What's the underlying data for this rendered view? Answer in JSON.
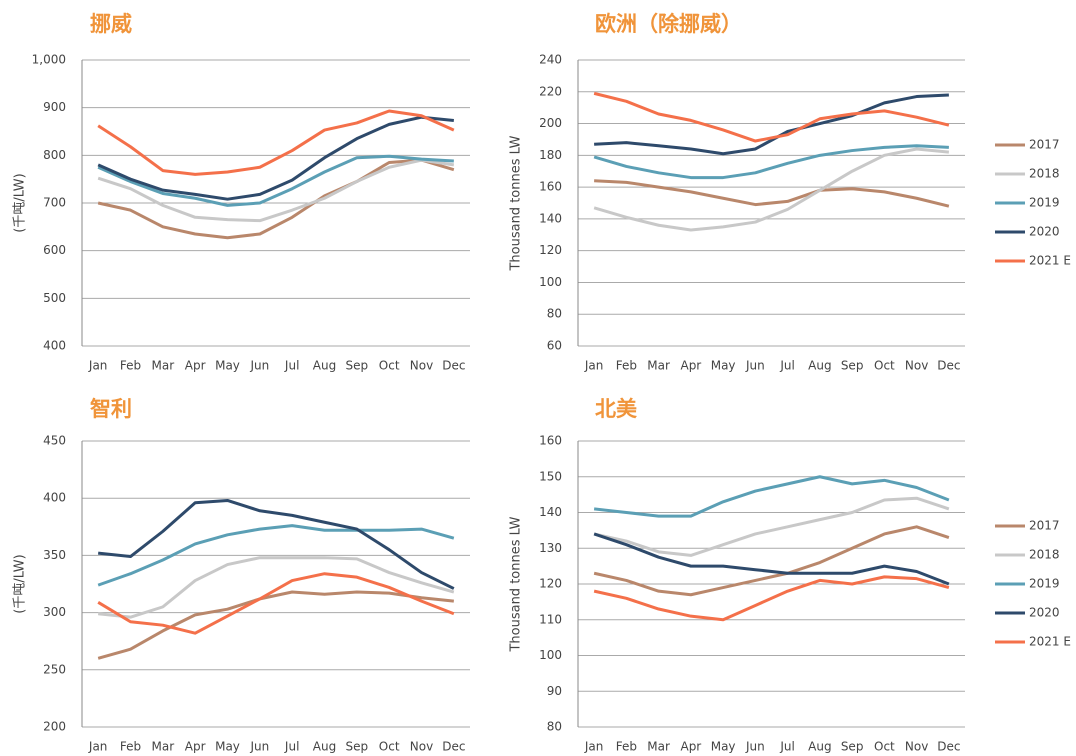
{
  "chart_data": [
    {
      "type": "line",
      "title": "挪威",
      "y_label": "(千吨/LW)",
      "categories": [
        "Jan",
        "Feb",
        "Mar",
        "Apr",
        "May",
        "Jun",
        "Jul",
        "Aug",
        "Sep",
        "Oct",
        "Nov",
        "Dec"
      ],
      "ylim": [
        400,
        1000
      ],
      "yticks": [
        400,
        500,
        600,
        700,
        800,
        900,
        {
          "value": 1000,
          "label": "1,000"
        }
      ],
      "grid": true,
      "series": [
        {
          "name": "2017",
          "color": "#b9876b",
          "values": [
            700,
            685,
            650,
            635,
            627,
            635,
            670,
            715,
            745,
            785,
            790,
            770
          ]
        },
        {
          "name": "2018",
          "color": "#c8c8c8",
          "values": [
            752,
            730,
            695,
            670,
            665,
            663,
            685,
            710,
            745,
            775,
            790,
            780
          ]
        },
        {
          "name": "2019",
          "color": "#5b9fb5",
          "values": [
            775,
            745,
            720,
            710,
            695,
            700,
            730,
            765,
            795,
            798,
            792,
            788
          ]
        },
        {
          "name": "2020",
          "color": "#2e4a6b",
          "values": [
            780,
            750,
            727,
            718,
            708,
            718,
            748,
            795,
            835,
            865,
            880,
            873
          ]
        },
        {
          "name": "2021 E",
          "color": "#f4704a",
          "values": [
            862,
            818,
            768,
            760,
            765,
            775,
            810,
            853,
            868,
            893,
            883,
            853
          ]
        }
      ]
    },
    {
      "type": "line",
      "title": "欧洲（除挪威）",
      "y_label": "Thousand tonnes LW",
      "legend": "right",
      "categories": [
        "Jan",
        "Feb",
        "Mar",
        "Apr",
        "May",
        "Jun",
        "Jul",
        "Aug",
        "Sep",
        "Oct",
        "Nov",
        "Dec"
      ],
      "ylim": [
        60,
        240
      ],
      "yticks": [
        60,
        80,
        100,
        120,
        140,
        160,
        180,
        200,
        220,
        240
      ],
      "grid": true,
      "series": [
        {
          "name": "2017",
          "color": "#b9876b",
          "values": [
            164,
            163,
            160,
            157,
            153,
            149,
            151,
            158,
            159,
            157,
            153,
            148
          ]
        },
        {
          "name": "2018",
          "color": "#c8c8c8",
          "values": [
            147,
            141,
            136,
            133,
            135,
            138,
            146,
            158,
            170,
            180,
            184,
            182
          ]
        },
        {
          "name": "2019",
          "color": "#5b9fb5",
          "values": [
            179,
            173,
            169,
            166,
            166,
            169,
            175,
            180,
            183,
            185,
            186,
            185
          ]
        },
        {
          "name": "2020",
          "color": "#2e4a6b",
          "values": [
            187,
            188,
            186,
            184,
            181,
            184,
            195,
            200,
            205,
            213,
            217,
            218
          ]
        },
        {
          "name": "2021 E",
          "color": "#f4704a",
          "values": [
            219,
            214,
            206,
            202,
            196,
            189,
            193,
            203,
            206,
            208,
            204,
            199
          ]
        }
      ]
    },
    {
      "type": "line",
      "title": "智利",
      "y_label": "(千吨/LW)",
      "categories": [
        "Jan",
        "Feb",
        "Mar",
        "Apr",
        "May",
        "Jun",
        "Jul",
        "Aug",
        "Sep",
        "Oct",
        "Nov",
        "Dec"
      ],
      "ylim": [
        200,
        450
      ],
      "yticks": [
        200,
        250,
        300,
        350,
        400,
        450
      ],
      "grid": true,
      "series": [
        {
          "name": "2017",
          "color": "#b9876b",
          "values": [
            260,
            268,
            284,
            298,
            303,
            312,
            318,
            316,
            318,
            317,
            313,
            310
          ]
        },
        {
          "name": "2018",
          "color": "#c8c8c8",
          "values": [
            299,
            296,
            305,
            328,
            342,
            348,
            348,
            348,
            347,
            335,
            326,
            318
          ]
        },
        {
          "name": "2019",
          "color": "#5b9fb5",
          "values": [
            324,
            334,
            346,
            360,
            368,
            373,
            376,
            372,
            372,
            372,
            373,
            365
          ]
        },
        {
          "name": "2020",
          "color": "#2e4a6b",
          "values": [
            352,
            349,
            371,
            396,
            398,
            389,
            385,
            379,
            373,
            355,
            335,
            321
          ]
        },
        {
          "name": "2021 E",
          "color": "#f4704a",
          "values": [
            309,
            292,
            289,
            282,
            297,
            312,
            328,
            334,
            331,
            322,
            310,
            299
          ]
        }
      ]
    },
    {
      "type": "line",
      "title": "北美",
      "y_label": "Thousand tonnes LW",
      "legend": "right",
      "categories": [
        "Jan",
        "Feb",
        "Mar",
        "Apr",
        "May",
        "Jun",
        "Jul",
        "Aug",
        "Sep",
        "Oct",
        "Nov",
        "Dec"
      ],
      "ylim": [
        80,
        160
      ],
      "yticks": [
        80,
        90,
        100,
        110,
        120,
        130,
        140,
        150,
        160
      ],
      "grid": true,
      "series": [
        {
          "name": "2017",
          "color": "#b9876b",
          "values": [
            123,
            121,
            118,
            117,
            119,
            121,
            123,
            126,
            130,
            134,
            136,
            133
          ]
        },
        {
          "name": "2018",
          "color": "#c8c8c8",
          "values": [
            134,
            132,
            129,
            128,
            131,
            134,
            136,
            138,
            140,
            143.5,
            144,
            141
          ]
        },
        {
          "name": "2019",
          "color": "#5b9fb5",
          "values": [
            141,
            140,
            139,
            139,
            143,
            146,
            148,
            150,
            148,
            149,
            147,
            143.5
          ]
        },
        {
          "name": "2020",
          "color": "#2e4a6b",
          "values": [
            134,
            131,
            127.5,
            125,
            125,
            124,
            123,
            123,
            123,
            125,
            123.5,
            120
          ]
        },
        {
          "name": "2021 E",
          "color": "#f4704a",
          "values": [
            118,
            116,
            113,
            111,
            110,
            114,
            118,
            121,
            120,
            122,
            121.5,
            119
          ]
        }
      ]
    }
  ]
}
